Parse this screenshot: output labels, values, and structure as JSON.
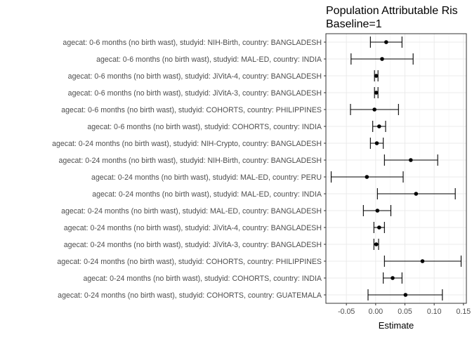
{
  "chart_data": {
    "type": "errorbar",
    "title_lines": [
      "Population Attributable Ris",
      "Baseline=1"
    ],
    "xlabel": "Estimate",
    "ylabel": "",
    "xlim": [
      -0.085,
      0.155
    ],
    "xticks": [
      -0.05,
      0.0,
      0.05,
      0.1,
      0.15
    ],
    "xtick_labels": [
      "-0.05",
      "0.00",
      "0.05",
      "0.10",
      "0.15"
    ],
    "grid": true,
    "point_color": "#000000",
    "grid_major_color": "#ebebeb",
    "grid_minor_color": "#f5f5f5",
    "categories": [
      "agecat: 0-6 months (no birth wast), studyid: NIH-Birth, country: BANGLADESH",
      "agecat: 0-6 months (no birth wast), studyid: MAL-ED, country: INDIA",
      "agecat: 0-6 months (no birth wast), studyid: JiVitA-4, country: BANGLADESH",
      "agecat: 0-6 months (no birth wast), studyid: JiVitA-3, country: BANGLADESH",
      "agecat: 0-6 months (no birth wast), studyid: COHORTS, country: PHILIPPINES",
      "agecat: 0-6 months (no birth wast), studyid: COHORTS, country: INDIA",
      "agecat: 0-24 months (no birth wast), studyid: NIH-Crypto, country: BANGLADESH",
      "agecat: 0-24 months (no birth wast), studyid: NIH-Birth, country: BANGLADESH",
      "agecat: 0-24 months (no birth wast), studyid: MAL-ED, country: PERU",
      "agecat: 0-24 months (no birth wast), studyid: MAL-ED, country: INDIA",
      "agecat: 0-24 months (no birth wast), studyid: MAL-ED, country: BANGLADESH",
      "agecat: 0-24 months (no birth wast), studyid: JiVitA-4, country: BANGLADESH",
      "agecat: 0-24 months (no birth wast), studyid: JiVitA-3, country: BANGLADESH",
      "agecat: 0-24 months (no birth wast), studyid: COHORTS, country: PHILIPPINES",
      "agecat: 0-24 months (no birth wast), studyid: COHORTS, country: INDIA",
      "agecat: 0-24 months (no birth wast), studyid: COHORTS, country: GUATEMALA"
    ],
    "estimates": [
      0.018,
      0.011,
      0.001,
      0.001,
      -0.002,
      0.006,
      0.002,
      0.06,
      -0.015,
      0.069,
      0.003,
      0.006,
      0.001,
      0.08,
      0.029,
      0.051
    ],
    "ci_lower": [
      -0.009,
      -0.042,
      -0.002,
      -0.002,
      -0.043,
      -0.005,
      -0.009,
      0.015,
      -0.076,
      0.003,
      -0.021,
      -0.003,
      -0.003,
      0.015,
      0.013,
      -0.013
    ],
    "ci_upper": [
      0.045,
      0.064,
      0.004,
      0.004,
      0.039,
      0.017,
      0.013,
      0.106,
      0.047,
      0.136,
      0.026,
      0.015,
      0.005,
      0.146,
      0.045,
      0.114
    ]
  }
}
